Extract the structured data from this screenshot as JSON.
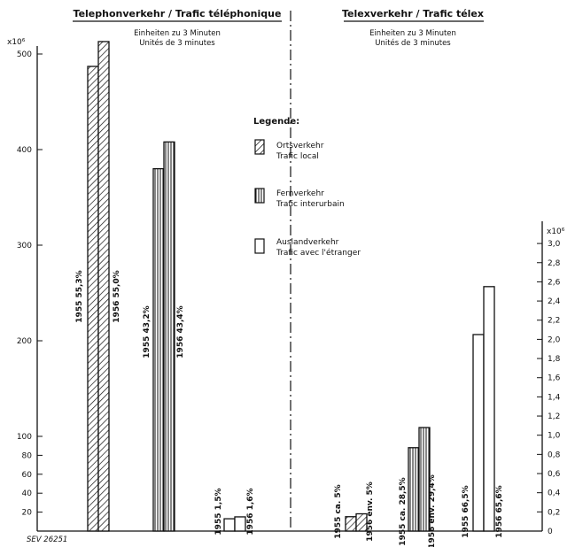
{
  "headers": {
    "left_title": "Telephonverkehr / Trafic téléphonique",
    "left_subtitle_1": "Einheiten zu 3 Minuten",
    "left_subtitle_2": "Unités de 3 minutes",
    "right_title": "Telexverkehr / Trafic télex",
    "right_subtitle_1": "Einheiten zu 3 Minuten",
    "right_subtitle_2": "Unités de 3 minutes",
    "footer_code": "SEV 26251"
  },
  "legend": {
    "title": "Legende:",
    "items": [
      {
        "key": "local",
        "line1": "Ortsverkehr",
        "line2": "Trafic local"
      },
      {
        "key": "interurban",
        "line1": "Fernverkehr",
        "line2": "Trafic interurbain"
      },
      {
        "key": "foreign",
        "line1": "Auslandverkehr",
        "line2": "Trafic avec l'étranger"
      }
    ]
  },
  "chart_data": [
    {
      "type": "bar",
      "panel": "telephone",
      "unit": "x10^6",
      "ylim": [
        0,
        520
      ],
      "yticks": [
        "20",
        "40",
        "60",
        "80",
        "100",
        "200",
        "300",
        "400",
        "500"
      ],
      "groups": [
        {
          "category": "local",
          "bars": [
            {
              "year": "1955",
              "value": 487,
              "label": "1955  55,3%"
            },
            {
              "year": "1956",
              "value": 513,
              "label": "1956  55,0%"
            }
          ]
        },
        {
          "category": "interurban",
          "bars": [
            {
              "year": "1955",
              "value": 380,
              "label": "1955  43,2%"
            },
            {
              "year": "1956",
              "value": 408,
              "label": "1956  43,4%"
            }
          ]
        },
        {
          "category": "foreign",
          "bars": [
            {
              "year": "1955",
              "value": 13,
              "label": "1955  1,5%"
            },
            {
              "year": "1956",
              "value": 15,
              "label": "1956  1,6%"
            }
          ]
        }
      ]
    },
    {
      "type": "bar",
      "panel": "telex",
      "unit": "x10^6",
      "ylim": [
        0,
        3.1
      ],
      "yticks": [
        "0",
        "0,2",
        "0,4",
        "0,6",
        "0,8",
        "1,0",
        "1,2",
        "1,4",
        "1,6",
        "1,8",
        "2,0",
        "2,2",
        "2,4",
        "2,6",
        "2,8",
        "3,0"
      ],
      "groups": [
        {
          "category": "local",
          "bars": [
            {
              "year": "1955",
              "value": 0.15,
              "label": "1955 ca. 5%"
            },
            {
              "year": "1956",
              "value": 0.18,
              "label": "1956 env. 5%"
            }
          ]
        },
        {
          "category": "interurban",
          "bars": [
            {
              "year": "1955",
              "value": 0.87,
              "label": "1955 ca. 28,5%"
            },
            {
              "year": "1956",
              "value": 1.08,
              "label": "1956 env. 29,4%"
            }
          ]
        },
        {
          "category": "foreign",
          "bars": [
            {
              "year": "1955",
              "value": 2.05,
              "label": "1955  66,5%"
            },
            {
              "year": "1956",
              "value": 2.55,
              "label": "1956  65,6%"
            }
          ]
        }
      ]
    }
  ]
}
